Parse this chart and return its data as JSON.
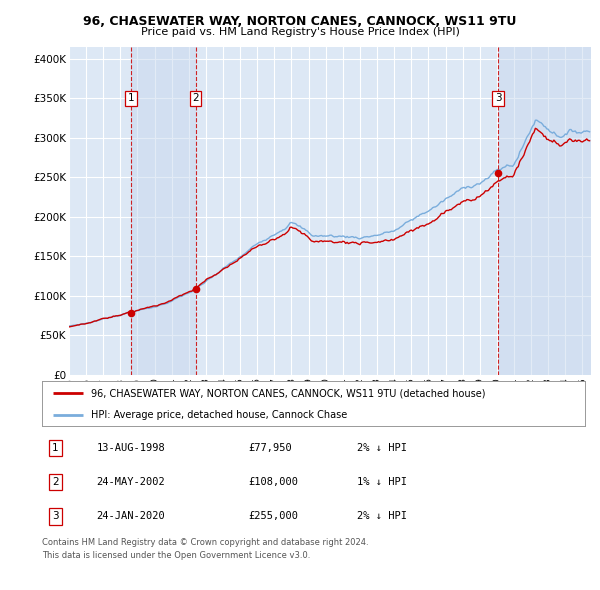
{
  "title1": "96, CHASEWATER WAY, NORTON CANES, CANNOCK, WS11 9TU",
  "title2": "Price paid vs. HM Land Registry's House Price Index (HPI)",
  "ylabel_ticks": [
    "£0",
    "£50K",
    "£100K",
    "£150K",
    "£200K",
    "£250K",
    "£300K",
    "£350K",
    "£400K"
  ],
  "ytick_values": [
    0,
    50000,
    100000,
    150000,
    200000,
    250000,
    300000,
    350000,
    400000
  ],
  "ylim": [
    0,
    415000
  ],
  "xlim_start": 1995.0,
  "xlim_end": 2025.5,
  "sale_dates": [
    1998.617,
    2002.392,
    2020.069
  ],
  "sale_prices": [
    77950,
    108000,
    255000
  ],
  "sale_labels": [
    "1",
    "2",
    "3"
  ],
  "vline_color": "#cc0000",
  "dot_color": "#cc0000",
  "hpi_line_color": "#7aaddc",
  "price_line_color": "#cc0000",
  "plot_bg_color": "#dde8f5",
  "grid_color": "#ffffff",
  "legend_label_red": "96, CHASEWATER WAY, NORTON CANES, CANNOCK, WS11 9TU (detached house)",
  "legend_label_blue": "HPI: Average price, detached house, Cannock Chase",
  "table_rows": [
    {
      "num": "1",
      "date": "13-AUG-1998",
      "price": "£77,950",
      "hpi": "2% ↓ HPI"
    },
    {
      "num": "2",
      "date": "24-MAY-2002",
      "price": "£108,000",
      "hpi": "1% ↓ HPI"
    },
    {
      "num": "3",
      "date": "24-JAN-2020",
      "price": "£255,000",
      "hpi": "2% ↓ HPI"
    }
  ],
  "footer": "Contains HM Land Registry data © Crown copyright and database right 2024.\nThis data is licensed under the Open Government Licence v3.0.",
  "xtick_years": [
    1995,
    1996,
    1997,
    1998,
    1999,
    2000,
    2001,
    2002,
    2003,
    2004,
    2005,
    2006,
    2007,
    2008,
    2009,
    2010,
    2011,
    2012,
    2013,
    2014,
    2015,
    2016,
    2017,
    2018,
    2019,
    2020,
    2021,
    2022,
    2023,
    2024,
    2025
  ]
}
